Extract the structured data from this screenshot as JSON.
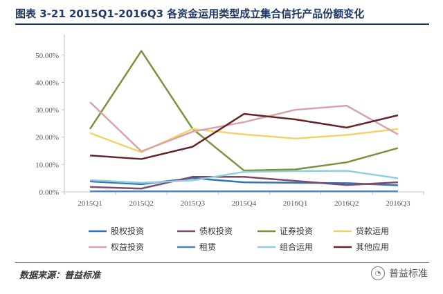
{
  "header": {
    "title": "图表 3-21 2015Q1-2016Q3 各资金运用类型成立集合信托产品份额变化"
  },
  "footer": {
    "source": "数据来源：普益标准",
    "watermark": "普益标准"
  },
  "chart_data": {
    "type": "line",
    "categories": [
      "2015Q1",
      "2015Q2",
      "2015Q3",
      "2015Q4",
      "2016Q1",
      "2016Q2",
      "2016Q3"
    ],
    "yticks": [
      "0.00%",
      "10.00%",
      "20.00%",
      "30.00%",
      "40.00%",
      "50.00%"
    ],
    "ylim": [
      0,
      55
    ],
    "grid": false,
    "legend_position": "bottom",
    "series": [
      {
        "name": "股权投资",
        "color": "#2e75b6",
        "values": [
          3.8,
          2.8,
          5.0,
          3.5,
          3.3,
          3.2,
          2.4
        ]
      },
      {
        "name": "债权投资",
        "color": "#7b4a6e",
        "values": [
          1.8,
          1.2,
          5.5,
          5.5,
          4.0,
          2.5,
          3.5
        ]
      },
      {
        "name": "证券投资",
        "color": "#77933c",
        "values": [
          23.0,
          51.5,
          23.0,
          7.8,
          8.2,
          10.8,
          16.0
        ]
      },
      {
        "name": "贷款运用",
        "color": "#f2d36b",
        "values": [
          21.5,
          14.5,
          23.0,
          21.0,
          19.5,
          20.8,
          23.0
        ]
      },
      {
        "name": "权益投资",
        "color": "#d7a3ab",
        "values": [
          32.8,
          14.8,
          22.0,
          25.5,
          30.0,
          31.5,
          21.0
        ]
      },
      {
        "name": "租赁",
        "color": "#4f81bd",
        "values": [
          0.2,
          0.2,
          0.2,
          0.2,
          0.2,
          0.2,
          0.2
        ]
      },
      {
        "name": "组合运用",
        "color": "#93cddd",
        "values": [
          4.3,
          3.3,
          4.2,
          7.3,
          7.6,
          7.7,
          5.0
        ]
      },
      {
        "name": "其他应用",
        "color": "#632423",
        "values": [
          13.3,
          12.0,
          16.5,
          28.5,
          26.5,
          23.5,
          28.0
        ]
      }
    ]
  }
}
